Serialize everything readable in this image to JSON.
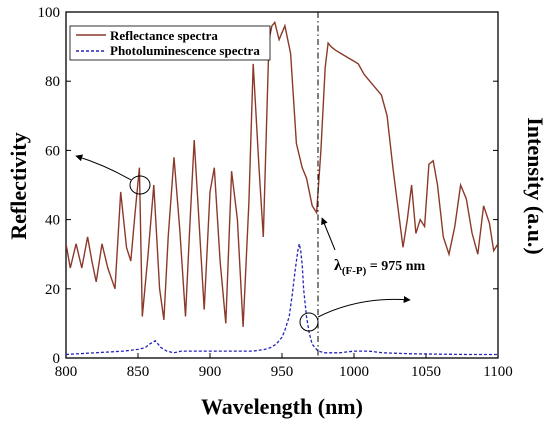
{
  "chart_data": {
    "type": "line",
    "xlabel": "Wavelength (nm)",
    "ylabel": "Reflectivity",
    "y2label": "Intensity (a.u.)",
    "xlim": [
      800,
      1100
    ],
    "ylim": [
      0,
      100
    ],
    "xticks": [
      800,
      850,
      900,
      950,
      1000,
      1050,
      1100
    ],
    "yticks": [
      0,
      20,
      40,
      60,
      80,
      100
    ],
    "legend_position": "top-left",
    "series": [
      {
        "name": "Reflectance spectra",
        "color": "#8B3A2A",
        "style": "solid",
        "x": [
          800,
          803,
          807,
          811,
          815,
          818,
          821,
          825,
          829,
          834,
          838,
          842,
          845,
          848,
          851,
          853,
          857,
          861,
          865,
          868,
          871,
          875,
          879,
          883,
          886,
          889,
          892,
          896,
          900,
          903,
          907,
          911,
          915,
          919,
          923,
          927,
          930,
          934,
          937,
          941,
          943,
          945,
          948,
          952,
          956,
          960,
          964,
          967,
          971,
          974,
          977,
          980,
          982,
          984,
          987,
          991,
          995,
          999,
          1003,
          1007,
          1011,
          1015,
          1019,
          1023,
          1027,
          1031,
          1034,
          1037,
          1040,
          1043,
          1046,
          1049,
          1052,
          1055,
          1058,
          1062,
          1066,
          1070,
          1074,
          1078,
          1082,
          1086,
          1090,
          1094,
          1097,
          1100
        ],
        "y": [
          33,
          26,
          33,
          26,
          35,
          28,
          22,
          33,
          26,
          20,
          48,
          32,
          28,
          42,
          55,
          12,
          30,
          50,
          20,
          11,
          35,
          58,
          37,
          12,
          38,
          63,
          42,
          14,
          48,
          55,
          28,
          10,
          54,
          40,
          9,
          45,
          85,
          55,
          35,
          92,
          96,
          97,
          92,
          96,
          88,
          62,
          55,
          52,
          44,
          42,
          60,
          84,
          91,
          90,
          89,
          88,
          87,
          86,
          85,
          82,
          80,
          78,
          76,
          70,
          55,
          42,
          32,
          40,
          50,
          36,
          40,
          38,
          56,
          57,
          50,
          35,
          30,
          38,
          50,
          46,
          36,
          30,
          44,
          39,
          31,
          33
        ]
      },
      {
        "name": "Photoluminescence spectra",
        "color": "#2424B8",
        "style": "dashed",
        "x": [
          800,
          820,
          840,
          850,
          855,
          858,
          862,
          866,
          870,
          875,
          880,
          885,
          890,
          900,
          910,
          920,
          930,
          938,
          942,
          946,
          950,
          952,
          955,
          957,
          959,
          961,
          962,
          963,
          964,
          965,
          967,
          969,
          971,
          975,
          980,
          990,
          1000,
          1005,
          1010,
          1020,
          1040,
          1060,
          1080,
          1100
        ],
        "y": [
          1,
          1.5,
          2,
          2.5,
          3,
          4,
          5,
          3,
          2,
          1.5,
          2,
          2,
          2,
          2,
          2,
          2,
          2,
          2.5,
          3,
          4,
          6,
          8,
          12,
          18,
          25,
          31,
          33,
          31,
          27,
          20,
          12,
          7,
          4,
          2,
          1.5,
          1.5,
          2,
          2,
          2,
          1.5,
          1.2,
          1.1,
          1,
          1
        ]
      }
    ],
    "annotations": [
      {
        "type": "vline",
        "x": 975,
        "style": "dash-dot"
      },
      {
        "type": "label",
        "text": "λ",
        "sub": "(F-P)",
        "rest": " = 975 nm"
      }
    ]
  }
}
